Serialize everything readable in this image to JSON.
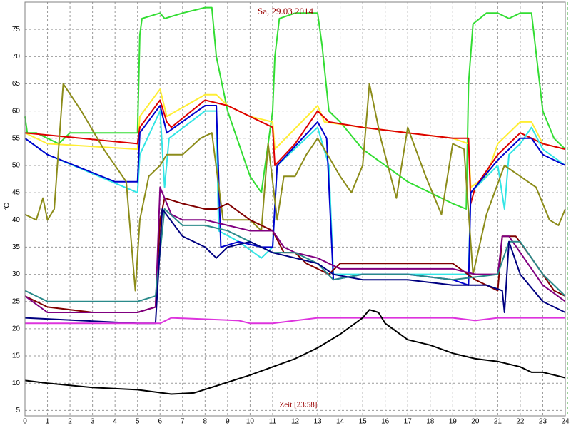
{
  "chart_data": {
    "type": "line",
    "title": "Sa, 29.03.2014",
    "x_label": "Zeit [23:58]",
    "y_label": "°C",
    "xlim": [
      0,
      24
    ],
    "xticks": [
      0,
      1,
      2,
      3,
      4,
      5,
      6,
      7,
      8,
      9,
      10,
      11,
      12,
      13,
      14,
      15,
      16,
      17,
      18,
      19,
      20,
      21,
      22,
      23,
      24
    ],
    "ylim": [
      4,
      80
    ],
    "yticks": [
      5,
      10,
      15,
      20,
      25,
      30,
      35,
      40,
      45,
      50,
      55,
      60,
      65,
      70,
      75
    ],
    "grid": true,
    "series": [
      {
        "color": "#33dd33",
        "x": [
          0,
          0.1,
          0.5,
          1,
          1.5,
          2,
          3,
          4,
          5,
          5.1,
          5.2,
          6,
          6.2,
          7,
          8,
          8.3,
          8.5,
          9,
          10,
          10.5,
          11,
          11.1,
          11.3,
          12,
          13,
          13.2,
          13.5,
          14,
          15,
          16,
          17,
          18,
          19,
          19.6,
          19.7,
          19.9,
          20.5,
          21,
          21.5,
          22,
          22.5,
          23,
          23.5,
          24
        ],
        "values": [
          59,
          56,
          56,
          55,
          54,
          56,
          56,
          56,
          56,
          74,
          77,
          78,
          77,
          78,
          79,
          79,
          70,
          60,
          48,
          45,
          60,
          70,
          77,
          78,
          78,
          72,
          60,
          58,
          53,
          50,
          47,
          45,
          43,
          42,
          65,
          76,
          78,
          78,
          77,
          78,
          78,
          60,
          55,
          53
        ]
      },
      {
        "color": "#ffee33",
        "x": [
          0,
          1,
          5,
          5.1,
          6,
          6.3,
          8,
          8.5,
          9,
          10,
          11,
          11.1,
          13,
          13.3,
          15,
          17,
          19,
          19.7,
          19.8,
          20.5,
          21,
          22,
          22.5,
          23,
          24
        ],
        "values": [
          56,
          54,
          53,
          59,
          64,
          59,
          63,
          63,
          61,
          59,
          58,
          53,
          61,
          58,
          57,
          56,
          55,
          54,
          46,
          48,
          54,
          58,
          58,
          54,
          53
        ]
      },
      {
        "color": "#dd0000",
        "x": [
          0,
          5,
          5.1,
          6,
          6.3,
          6.5,
          8,
          9,
          10,
          11,
          11.1,
          12,
          13,
          13.5,
          15,
          17,
          19,
          19.7,
          19.8,
          20,
          21,
          22,
          22.5,
          23,
          24
        ],
        "values": [
          56,
          54,
          57,
          62,
          58,
          57,
          62,
          61,
          59,
          57,
          50,
          54,
          60,
          58,
          57,
          56,
          55,
          55,
          43,
          46,
          52,
          56,
          55,
          54,
          53
        ]
      },
      {
        "color": "#33e5e5",
        "x": [
          0,
          1,
          5,
          5.1,
          6,
          6.2,
          6.4,
          8,
          8.5,
          8.6,
          9.5,
          10.5,
          11,
          11.2,
          13,
          13.5,
          13.7,
          15,
          17,
          19,
          19.7,
          19.8,
          21,
          21.3,
          21.5,
          22,
          22.5,
          23,
          24
        ],
        "values": [
          55,
          52,
          45,
          52,
          60,
          46,
          55,
          60,
          60,
          38,
          36,
          33,
          35,
          50,
          57,
          50,
          30,
          30,
          30,
          30,
          30,
          45,
          50,
          42,
          52,
          54,
          57,
          53,
          50
        ]
      },
      {
        "color": "#0000cc",
        "x": [
          0,
          1,
          4,
          5,
          5.1,
          6,
          6.3,
          8,
          8.5,
          8.7,
          9.5,
          10.5,
          11,
          11.2,
          13,
          13.4,
          13.7,
          15,
          17,
          19,
          19.7,
          19.8,
          21,
          22,
          22.5,
          23,
          24
        ],
        "values": [
          55,
          52,
          47,
          47,
          56,
          61,
          56,
          61,
          61,
          35,
          36,
          35,
          35,
          50,
          58,
          55,
          29,
          30,
          30,
          29,
          28,
          45,
          51,
          55,
          55,
          52,
          50
        ]
      },
      {
        "color": "#8c8c1a",
        "x": [
          0,
          0.5,
          0.8,
          1,
          1.3,
          1.7,
          2.5,
          3.5,
          4.5,
          4.9,
          5.1,
          5.5,
          6,
          6.3,
          7,
          7.8,
          8.3,
          8.8,
          10,
          10.5,
          10.8,
          11.2,
          11.5,
          12,
          12.5,
          13,
          13.3,
          14,
          14.5,
          15,
          15.3,
          15.8,
          16.5,
          17,
          17.8,
          18.5,
          19,
          19.5,
          19.9,
          20.5,
          21.3,
          22,
          22.7,
          23.3,
          23.7,
          24
        ],
        "values": [
          41,
          40,
          44,
          40,
          42,
          65,
          60,
          53,
          47,
          27,
          40,
          48,
          50,
          52,
          52,
          55,
          56,
          40,
          40,
          38,
          54,
          40,
          48,
          48,
          52,
          55,
          53,
          48,
          45,
          50,
          65,
          55,
          44,
          57,
          48,
          41,
          54,
          53,
          30,
          41,
          50,
          48,
          46,
          40,
          39,
          42
        ]
      },
      {
        "color": "#800000",
        "x": [
          0,
          1,
          3,
          5,
          5.8,
          6,
          6.2,
          7,
          8,
          8.5,
          9,
          10,
          11,
          11.5,
          12,
          12.5,
          13,
          13.5,
          14,
          16,
          18,
          19,
          20,
          21,
          21.2,
          21.8,
          22.5,
          23.5,
          24
        ],
        "values": [
          26,
          24,
          23,
          23,
          24,
          40,
          44,
          43,
          42,
          42,
          43,
          40,
          38,
          34,
          34,
          32,
          31,
          30,
          32,
          32,
          32,
          32,
          29,
          27,
          37,
          37,
          33,
          27,
          26
        ]
      },
      {
        "color": "#800080",
        "x": [
          0,
          1,
          5,
          5.8,
          6,
          6.5,
          7,
          8,
          9,
          10,
          11,
          11.5,
          12,
          13,
          13.5,
          14,
          16,
          18,
          19,
          20,
          21,
          21.2,
          21.5,
          22,
          23,
          24
        ],
        "values": [
          26,
          23,
          23,
          24,
          46,
          41,
          40,
          40,
          39,
          38,
          38,
          35,
          34,
          33,
          32,
          31,
          31,
          31,
          31,
          30,
          30,
          37,
          37,
          34,
          28,
          25
        ]
      },
      {
        "color": "#2a8a8a",
        "x": [
          0,
          1,
          5,
          5.8,
          6.2,
          7,
          8,
          9,
          10,
          11,
          12,
          13,
          13.7,
          15,
          17,
          19,
          21,
          21.5,
          22,
          23,
          24
        ],
        "values": [
          27,
          25,
          25,
          26,
          42,
          39,
          39,
          38,
          36,
          34,
          34,
          32,
          29,
          30,
          30,
          29,
          30,
          36,
          36,
          30,
          26
        ]
      },
      {
        "color": "#000080",
        "x": [
          0,
          5,
          5.8,
          6.1,
          7,
          8,
          8.5,
          9,
          10,
          11,
          12,
          13,
          13.7,
          15,
          17,
          19,
          20.5,
          21.2,
          21.3,
          21.5,
          22,
          23,
          24
        ],
        "values": [
          22,
          21,
          21,
          42,
          37,
          35,
          33,
          35,
          36,
          34,
          33,
          32,
          30,
          29,
          29,
          28,
          28,
          27,
          23,
          36,
          30,
          25,
          23
        ]
      },
      {
        "color": "#dd33dd",
        "x": [
          0,
          6,
          6.5,
          9.5,
          10,
          11,
          13,
          15,
          17,
          19,
          20,
          21,
          24
        ],
        "values": [
          21,
          21,
          22,
          21.5,
          21,
          21,
          22,
          22,
          22,
          22,
          21.5,
          22,
          22
        ]
      },
      {
        "color": "#000000",
        "x": [
          0,
          1,
          3,
          5,
          6.5,
          7.5,
          8.5,
          10,
          11,
          12,
          13,
          14,
          15,
          15.3,
          15.7,
          16,
          17,
          18,
          19,
          20,
          21,
          22,
          22.5,
          23,
          24
        ],
        "values": [
          10.5,
          10,
          9.2,
          8.8,
          8,
          8.2,
          9.5,
          11.5,
          13,
          14.5,
          16.5,
          19,
          22,
          23.5,
          23,
          21,
          18,
          17,
          15.5,
          14.5,
          14,
          13,
          12,
          12,
          11
        ]
      }
    ]
  }
}
